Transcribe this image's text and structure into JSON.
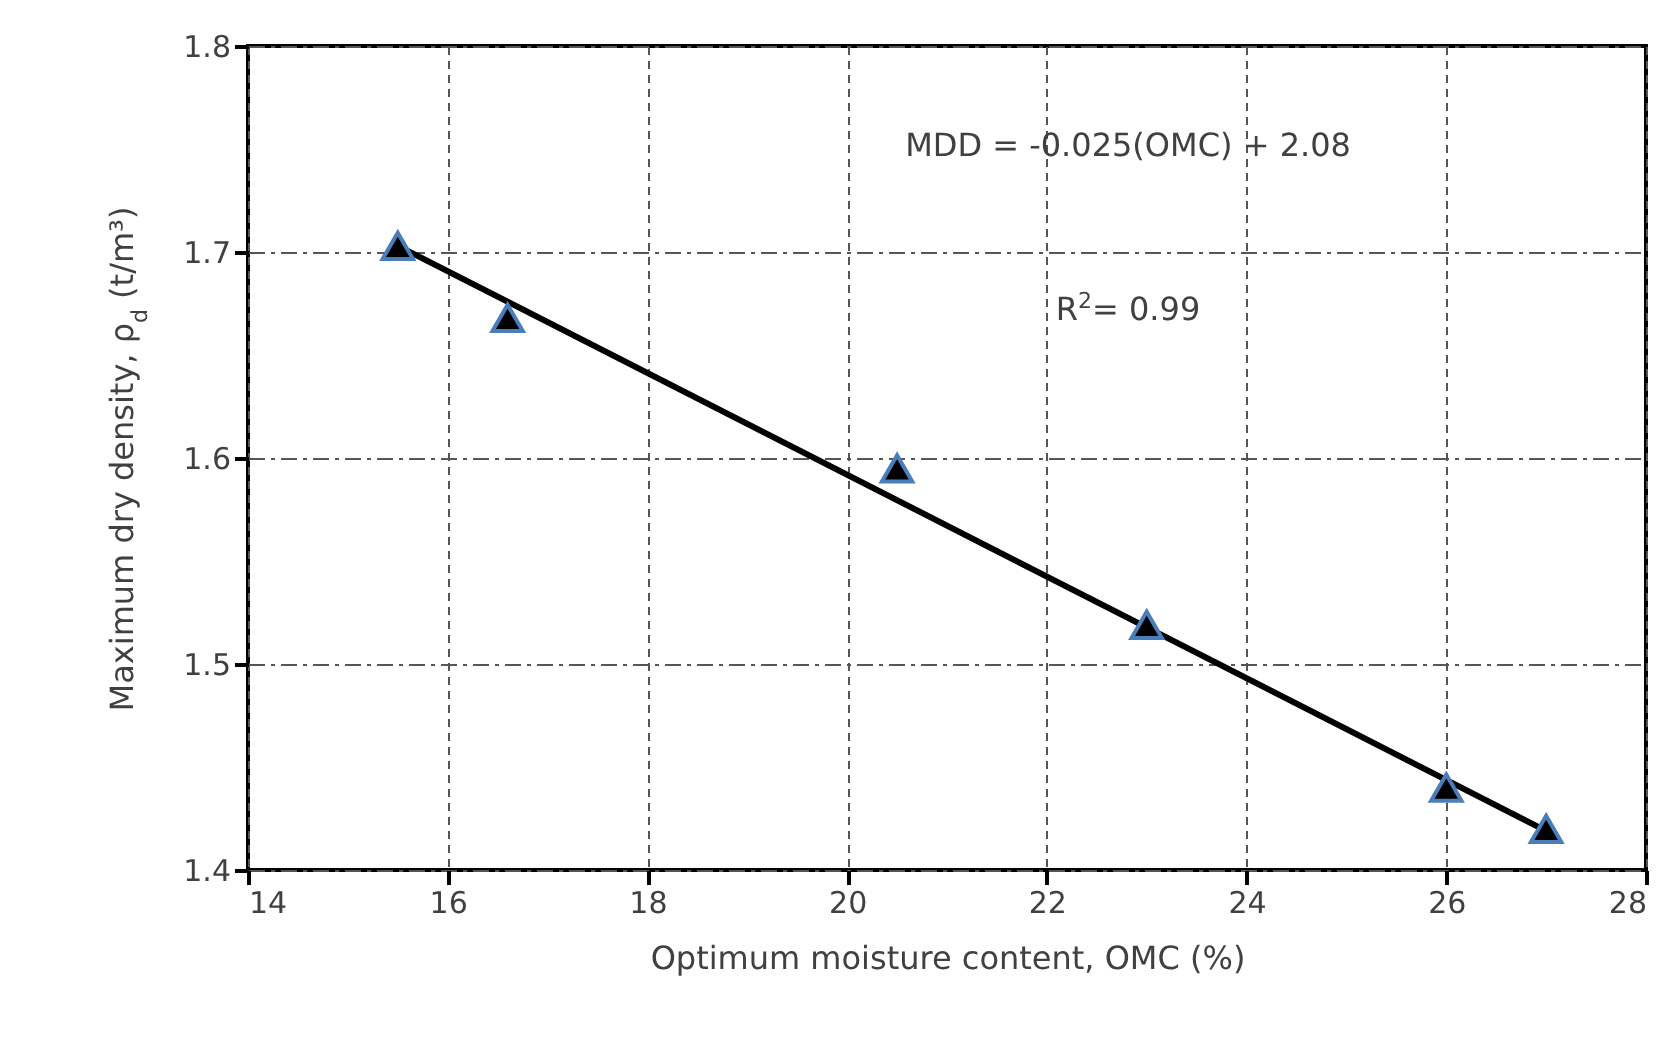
{
  "chart_data": {
    "type": "scatter",
    "xlabel": "Optimum moisture content, OMC (%)",
    "ylabel": "Maximum dry density, ρ$_{d}$ (t/m³)",
    "annotations": [
      "MDD = -0.025(OMC) + 2.08",
      "R$^{2}$= 0.99"
    ],
    "series": [
      {
        "marker": "triangle",
        "color": "#000000",
        "x": [
          15.5,
          16.6,
          20.5,
          23,
          26,
          27
        ],
        "values": [
          1.703,
          1.668,
          1.595,
          1.519,
          1.44,
          1.42
        ]
      },
      {
        "type": "line",
        "marker": "none",
        "color": "#000000",
        "x": [
          15.5,
          27
        ],
        "values": [
          1.703,
          1.419
        ]
      }
    ],
    "xlim": [
      14,
      28
    ],
    "xticks": [
      14,
      16,
      18,
      20,
      22,
      24,
      26,
      28
    ],
    "ylim": [
      1.4,
      1.8
    ],
    "yticks": [
      1.4,
      1.5,
      1.6,
      1.7,
      1.8
    ],
    "grid": true
  }
}
